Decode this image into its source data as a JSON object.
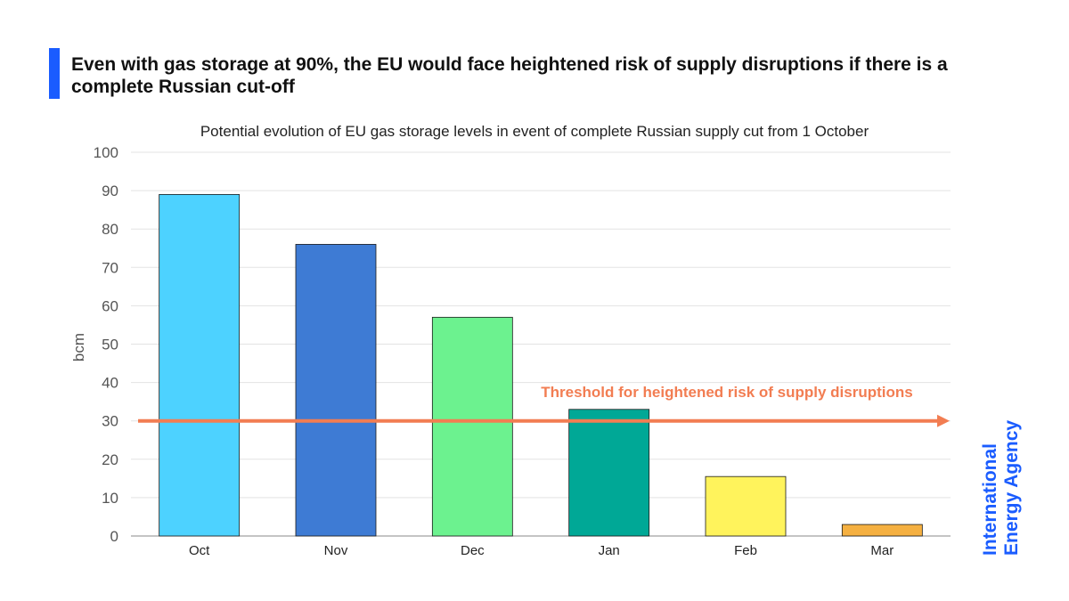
{
  "headline": "Even with gas storage at 90%, the EU would face heightened risk of supply disruptions if there is a complete Russian cut-off",
  "brand": {
    "line1": "International",
    "line2": "Energy Agency",
    "color": "#1a5cff"
  },
  "chart_data": {
    "type": "bar",
    "title": "Potential evolution of EU gas storage levels in event of complete Russian supply cut from 1 October",
    "xlabel": "",
    "ylabel": "bcm",
    "ylim": [
      0,
      100
    ],
    "yticks": [
      0,
      10,
      20,
      30,
      40,
      50,
      60,
      70,
      80,
      90,
      100
    ],
    "grid": true,
    "legend": "none",
    "categories": [
      "Oct",
      "Nov",
      "Dec",
      "Jan",
      "Feb",
      "Mar"
    ],
    "values": [
      89,
      76,
      57,
      33,
      15.5,
      3
    ],
    "colors": [
      "#4dd2ff",
      "#3e7bd4",
      "#6cf28f",
      "#00a896",
      "#fff35c",
      "#f5b041"
    ],
    "annotations": [
      {
        "text": "Threshold for heightened risk of supply disruptions",
        "y": 30,
        "color": "#f27d52"
      }
    ]
  }
}
